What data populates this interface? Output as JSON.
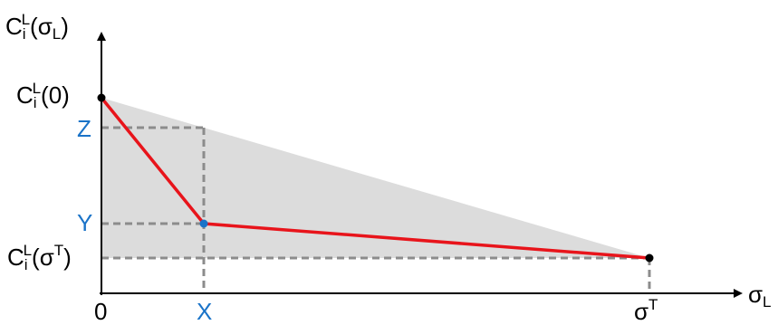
{
  "labels": {
    "y_axis": {
      "base": "C",
      "sub": "i",
      "sup": "L",
      "open": "(σ",
      "arg_sub": "L",
      "close": ")"
    },
    "x_axis": {
      "base": "σ",
      "sub": "L"
    },
    "c_zero": {
      "base": "C",
      "sub": "i",
      "sup": "L",
      "arg": "(0)"
    },
    "c_sigma_t": {
      "base": "C",
      "sub": "i",
      "sup": "L",
      "open": "(σ",
      "arg_sup": "T",
      "close": ")"
    },
    "origin": "0",
    "sigma_t": {
      "base": "σ",
      "sup": "T"
    },
    "x_point": "X",
    "y_point": "Y",
    "z_point": "Z"
  },
  "colors": {
    "region_fill": "#dcdcdc",
    "curve": "#e8141b",
    "guide": "#8c8c8c",
    "axis": "#000000",
    "point_label": "#1a73c8",
    "endpoint": "#000000",
    "knee_point": "#1a73c8"
  }
}
